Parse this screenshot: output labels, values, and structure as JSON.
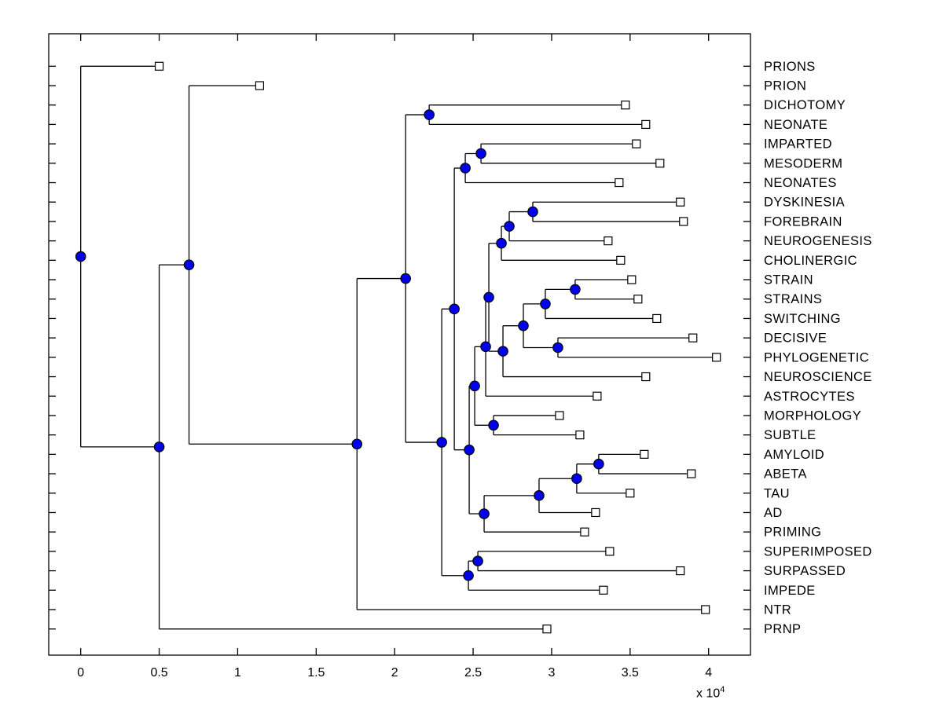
{
  "figure": {
    "background": "#ffffff",
    "box_color": "#000000"
  },
  "axis": {
    "tick_labels": [
      "0",
      "0.5",
      "1",
      "1.5",
      "2",
      "2.5",
      "3",
      "3.5",
      "4"
    ],
    "tick_values": [
      0,
      5000,
      10000,
      15000,
      20000,
      25000,
      30000,
      35000,
      40000
    ],
    "multiplier_prefix": "x 10",
    "multiplier_exponent": "4"
  },
  "chart_data": {
    "type": "dendrogram",
    "title": "",
    "xlabel": "",
    "ylabel": "",
    "orientation": "horizontal-root-left",
    "leaf_labels_position": "right",
    "x_axis_multiplier": "x 10^4",
    "xlim": [
      -2040,
      42520
    ],
    "grid": false,
    "colors": {
      "branch": "#000000",
      "internal_node_fill": "#0000EE",
      "internal_node_edge": "#000000",
      "leaf_marker_fill": "#ffffff",
      "leaf_marker_edge": "#000000"
    },
    "leaves": [
      {
        "label": "PRIONS",
        "tip_value": 5000
      },
      {
        "label": "PRION",
        "tip_value": 11400
      },
      {
        "label": "DICHOTOMY",
        "tip_value": 34700
      },
      {
        "label": "NEONATE",
        "tip_value": 36000
      },
      {
        "label": "IMPARTED",
        "tip_value": 35400
      },
      {
        "label": "MESODERM",
        "tip_value": 36900
      },
      {
        "label": "NEONATES",
        "tip_value": 34300
      },
      {
        "label": "DYSKINESIA",
        "tip_value": 38200
      },
      {
        "label": "FOREBRAIN",
        "tip_value": 38400
      },
      {
        "label": "NEUROGENESIS",
        "tip_value": 33600
      },
      {
        "label": "CHOLINERGIC",
        "tip_value": 34400
      },
      {
        "label": "STRAIN",
        "tip_value": 35100
      },
      {
        "label": "STRAINS",
        "tip_value": 35500
      },
      {
        "label": "SWITCHING",
        "tip_value": 36700
      },
      {
        "label": "DECISIVE",
        "tip_value": 39000
      },
      {
        "label": "PHYLOGENETIC",
        "tip_value": 40500
      },
      {
        "label": "NEUROSCIENCE",
        "tip_value": 36000
      },
      {
        "label": "ASTROCYTES",
        "tip_value": 32900
      },
      {
        "label": "MORPHOLOGY",
        "tip_value": 30500
      },
      {
        "label": "SUBTLE",
        "tip_value": 31800
      },
      {
        "label": "AMYLOID",
        "tip_value": 35900
      },
      {
        "label": "ABETA",
        "tip_value": 38900
      },
      {
        "label": "TAU",
        "tip_value": 35000
      },
      {
        "label": "AD",
        "tip_value": 32800
      },
      {
        "label": "PRIMING",
        "tip_value": 32100
      },
      {
        "label": "SUPERIMPOSED",
        "tip_value": 33700
      },
      {
        "label": "SURPASSED",
        "tip_value": 38200
      },
      {
        "label": "IMPEDE",
        "tip_value": 33300
      },
      {
        "label": "NTR",
        "tip_value": 39800
      },
      {
        "label": "PRNP",
        "tip_value": 29700
      }
    ],
    "tree": {
      "value": 0,
      "children": [
        {
          "leaf": "PRIONS",
          "value": 5000
        },
        {
          "value": 5000,
          "children": [
            {
              "value": 6900,
              "children": [
                {
                  "leaf": "PRION",
                  "value": 11400
                },
                {
                  "value": 17600,
                  "children": [
                    {
                      "value": 20700,
                      "children": [
                        {
                          "value": 22200,
                          "children": [
                            {
                              "leaf": "DICHOTOMY",
                              "value": 34700
                            },
                            {
                              "leaf": "NEONATE",
                              "value": 36000
                            }
                          ]
                        },
                        {
                          "value": 23000,
                          "children": [
                            {
                              "value": 23800,
                              "children": [
                                {
                                  "value": 24500,
                                  "children": [
                                    {
                                      "value": 25500,
                                      "children": [
                                        {
                                          "leaf": "IMPARTED",
                                          "value": 35400
                                        },
                                        {
                                          "leaf": "MESODERM",
                                          "value": 36900
                                        }
                                      ]
                                    },
                                    {
                                      "leaf": "NEONATES",
                                      "value": 34300
                                    }
                                  ]
                                },
                                {
                                  "value": 24750,
                                  "children": [
                                    {
                                      "value": 25100,
                                      "children": [
                                        {
                                          "value": 25800,
                                          "children": [
                                            {
                                              "value": 26000,
                                              "children": [
                                                {
                                                  "value": 26800,
                                                  "children": [
                                                    {
                                                      "value": 27300,
                                                      "children": [
                                                        {
                                                          "value": 28800,
                                                          "children": [
                                                            {
                                                              "leaf": "DYSKINESIA",
                                                              "value": 38200
                                                            },
                                                            {
                                                              "leaf": "FOREBRAIN",
                                                              "value": 38400
                                                            }
                                                          ]
                                                        },
                                                        {
                                                          "leaf": "NEUROGENESIS",
                                                          "value": 33600
                                                        }
                                                      ]
                                                    },
                                                    {
                                                      "leaf": "CHOLINERGIC",
                                                      "value": 34400
                                                    }
                                                  ]
                                                },
                                                {
                                                  "value": 26900,
                                                  "children": [
                                                    {
                                                      "value": 28200,
                                                      "children": [
                                                        {
                                                          "value": 29600,
                                                          "children": [
                                                            {
                                                              "value": 31500,
                                                              "children": [
                                                                {
                                                                  "leaf": "STRAIN",
                                                                  "value": 35100
                                                                },
                                                                {
                                                                  "leaf": "STRAINS",
                                                                  "value": 35500
                                                                }
                                                              ]
                                                            },
                                                            {
                                                              "leaf": "SWITCHING",
                                                              "value": 36700
                                                            }
                                                          ]
                                                        },
                                                        {
                                                          "value": 30400,
                                                          "children": [
                                                            {
                                                              "leaf": "DECISIVE",
                                                              "value": 39000
                                                            },
                                                            {
                                                              "leaf": "PHYLOGENETIC",
                                                              "value": 40500
                                                            }
                                                          ]
                                                        }
                                                      ]
                                                    },
                                                    {
                                                      "leaf": "NEUROSCIENCE",
                                                      "value": 36000
                                                    }
                                                  ]
                                                }
                                              ]
                                            },
                                            {
                                              "leaf": "ASTROCYTES",
                                              "value": 32900
                                            }
                                          ]
                                        },
                                        {
                                          "value": 26300,
                                          "children": [
                                            {
                                              "leaf": "MORPHOLOGY",
                                              "value": 30500
                                            },
                                            {
                                              "leaf": "SUBTLE",
                                              "value": 31800
                                            }
                                          ]
                                        }
                                      ]
                                    },
                                    {
                                      "value": 25700,
                                      "children": [
                                        {
                                          "value": 29200,
                                          "children": [
                                            {
                                              "value": 31600,
                                              "children": [
                                                {
                                                  "value": 33000,
                                                  "children": [
                                                    {
                                                      "leaf": "AMYLOID",
                                                      "value": 35900
                                                    },
                                                    {
                                                      "leaf": "ABETA",
                                                      "value": 38900
                                                    }
                                                  ]
                                                },
                                                {
                                                  "leaf": "TAU",
                                                  "value": 35000
                                                }
                                              ]
                                            },
                                            {
                                              "leaf": "AD",
                                              "value": 32800
                                            }
                                          ]
                                        },
                                        {
                                          "leaf": "PRIMING",
                                          "value": 32100
                                        }
                                      ]
                                    }
                                  ]
                                }
                              ]
                            },
                            {
                              "value": 24700,
                              "children": [
                                {
                                  "value": 25300,
                                  "children": [
                                    {
                                      "leaf": "SUPERIMPOSED",
                                      "value": 33700
                                    },
                                    {
                                      "leaf": "SURPASSED",
                                      "value": 38200
                                    }
                                  ]
                                },
                                {
                                  "leaf": "IMPEDE",
                                  "value": 33300
                                }
                              ]
                            }
                          ]
                        }
                      ]
                    },
                    {
                      "leaf": "NTR",
                      "value": 39800
                    }
                  ]
                }
              ]
            },
            {
              "leaf": "PRNP",
              "value": 29700
            }
          ]
        }
      ]
    }
  }
}
